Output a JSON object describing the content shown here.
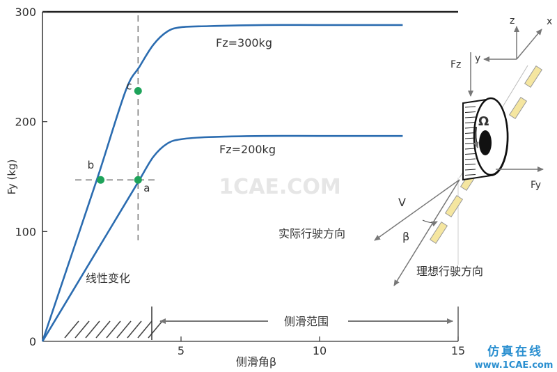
{
  "chart_data": {
    "type": "line",
    "ylabel": "Fy (kg)",
    "xlabel": "侧滑角β",
    "xlim": [
      0,
      15
    ],
    "ylim": [
      0,
      300
    ],
    "x_ticks": [
      0,
      5,
      10,
      15
    ],
    "y_ticks": [
      0,
      100,
      200,
      300
    ],
    "x_tick_labels": [
      "",
      "5",
      "10",
      "15"
    ],
    "y_tick_labels": [
      "0",
      "100",
      "200",
      "300"
    ],
    "grid": false,
    "series": [
      {
        "name": "Fz=300kg",
        "color": "#2b6cb0",
        "x": [
          0,
          1,
          2,
          3,
          3.5,
          4,
          4.5,
          5,
          6,
          8,
          10,
          13
        ],
        "y": [
          0,
          75,
          150,
          228,
          250,
          270,
          282,
          286,
          287,
          288,
          288,
          288
        ]
      },
      {
        "name": "Fz=200kg",
        "color": "#2b6cb0",
        "x": [
          0,
          1,
          2,
          3,
          3.5,
          4,
          4.5,
          5,
          6,
          8,
          10,
          13
        ],
        "y": [
          0,
          42,
          84,
          126,
          147,
          168,
          180,
          184,
          186,
          187,
          187,
          187
        ]
      }
    ],
    "points": [
      {
        "label": "a",
        "x": 3.45,
        "y": 147
      },
      {
        "label": "b",
        "x": 2.1,
        "y": 147
      },
      {
        "label": "c",
        "x": 3.45,
        "y": 228
      }
    ],
    "marker_color": "#1ea35a",
    "ref_lines": {
      "vertical_x": 3.45,
      "horizontal_y": 147
    },
    "annotations": {
      "series_300": "Fz=300kg",
      "series_200": "Fz=200kg",
      "linear": "线性变化",
      "sideslip_range": "侧滑范围"
    }
  },
  "diagram": {
    "axis_z": "z",
    "axis_x": "x",
    "axis_y": "y",
    "force_fz": "Fz",
    "force_fy": "Fy",
    "omega": "Ω",
    "velocity": "V",
    "beta": "β",
    "actual_direction": "实际行驶方向",
    "ideal_direction": "理想行驶方向",
    "contact_color": "#f5e6a0"
  },
  "watermark": {
    "center": "1CAE.COM",
    "corner_title": "仿真在线",
    "corner_url": "www.1CAE.com"
  }
}
